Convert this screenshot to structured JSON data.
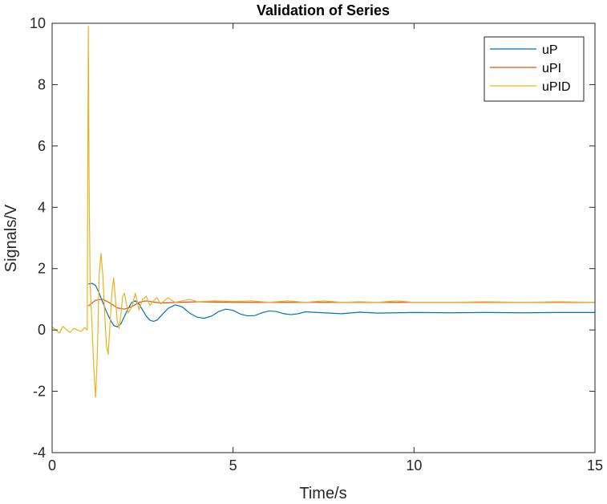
{
  "chart_data": {
    "type": "line",
    "title": "Validation of Series",
    "xlabel": "Time/s",
    "ylabel": "Signals/V",
    "xlim": [
      0,
      15
    ],
    "ylim": [
      -4,
      10
    ],
    "xticks": [
      0,
      5,
      10,
      15
    ],
    "yticks": [
      -4,
      -2,
      0,
      2,
      4,
      6,
      8,
      10
    ],
    "xtick_labels": [
      "0",
      "5",
      "10",
      "15"
    ],
    "ytick_labels": [
      "-4",
      "-2",
      "0",
      "2",
      "4",
      "6",
      "8",
      "10"
    ],
    "grid": false,
    "legend_position": "top-right",
    "series": [
      {
        "name": "uP",
        "color": "#0072BD",
        "x": [
          1.0,
          1.1,
          1.2,
          1.3,
          1.4,
          1.5,
          1.6,
          1.7,
          1.8,
          1.9,
          2.0,
          2.1,
          2.2,
          2.3,
          2.4,
          2.5,
          2.6,
          2.7,
          2.8,
          2.9,
          3.0,
          3.2,
          3.4,
          3.6,
          3.8,
          4.0,
          4.2,
          4.4,
          4.6,
          4.8,
          5.0,
          5.2,
          5.4,
          5.6,
          5.8,
          6.0,
          6.2,
          6.4,
          6.6,
          6.8,
          7.0,
          7.5,
          8.0,
          8.5,
          9.0,
          9.5,
          10.0,
          11.0,
          12.0,
          13.0,
          14.0,
          15.0
        ],
        "y": [
          1.5,
          1.52,
          1.45,
          1.2,
          0.9,
          0.6,
          0.35,
          0.15,
          0.1,
          0.2,
          0.45,
          0.7,
          0.9,
          0.95,
          0.85,
          0.65,
          0.45,
          0.32,
          0.28,
          0.32,
          0.45,
          0.7,
          0.82,
          0.75,
          0.55,
          0.42,
          0.38,
          0.45,
          0.6,
          0.68,
          0.64,
          0.52,
          0.46,
          0.47,
          0.56,
          0.62,
          0.6,
          0.53,
          0.5,
          0.53,
          0.59,
          0.56,
          0.53,
          0.58,
          0.55,
          0.56,
          0.57,
          0.56,
          0.57,
          0.56,
          0.57,
          0.57
        ]
      },
      {
        "name": "uPI",
        "color": "#D95319",
        "x": [
          1.0,
          1.2,
          1.4,
          1.6,
          1.8,
          2.0,
          2.2,
          2.4,
          2.6,
          2.8,
          3.0,
          3.5,
          4.0,
          5.0,
          6.0,
          8.0,
          10.0,
          12.0,
          15.0
        ],
        "y": [
          0.78,
          0.97,
          1.0,
          0.88,
          0.72,
          0.68,
          0.76,
          0.9,
          0.95,
          0.91,
          0.88,
          0.9,
          0.92,
          0.9,
          0.9,
          0.9,
          0.9,
          0.9,
          0.9
        ]
      },
      {
        "name": "uPID",
        "color": "#EDB120",
        "x": [
          0.0,
          0.1,
          0.2,
          0.3,
          0.4,
          0.5,
          0.6,
          0.7,
          0.8,
          0.9,
          0.97,
          1.0,
          1.02,
          1.05,
          1.1,
          1.15,
          1.2,
          1.25,
          1.3,
          1.35,
          1.4,
          1.45,
          1.5,
          1.55,
          1.6,
          1.65,
          1.7,
          1.75,
          1.8,
          1.85,
          1.9,
          1.95,
          2.0,
          2.1,
          2.2,
          2.3,
          2.4,
          2.5,
          2.6,
          2.7,
          2.8,
          2.9,
          3.0,
          3.2,
          3.4,
          3.6,
          3.8,
          4.0,
          4.5,
          5.0,
          5.5,
          6.0,
          6.5,
          7.0,
          7.5,
          8.0,
          8.5,
          9.0,
          9.5,
          10.0,
          11.0,
          12.0,
          13.0,
          14.0,
          15.0
        ],
        "y": [
          0.1,
          0.0,
          -0.1,
          0.12,
          0.0,
          -0.08,
          0.05,
          0.0,
          -0.05,
          0.08,
          0.0,
          9.9,
          5.0,
          1.5,
          0.2,
          -1.2,
          -2.2,
          -0.8,
          1.8,
          2.5,
          1.8,
          0.6,
          -0.5,
          -0.8,
          0.2,
          1.2,
          1.7,
          1.0,
          0.3,
          0.05,
          0.5,
          1.1,
          1.2,
          0.55,
          0.75,
          1.2,
          0.65,
          1.0,
          1.1,
          0.8,
          0.95,
          1.05,
          0.85,
          1.05,
          0.9,
          0.95,
          1.0,
          0.92,
          0.95,
          0.93,
          0.95,
          0.9,
          0.95,
          0.9,
          0.95,
          0.9,
          0.92,
          0.9,
          0.95,
          0.9,
          0.9,
          0.92,
          0.9,
          0.92,
          0.9
        ]
      }
    ]
  }
}
